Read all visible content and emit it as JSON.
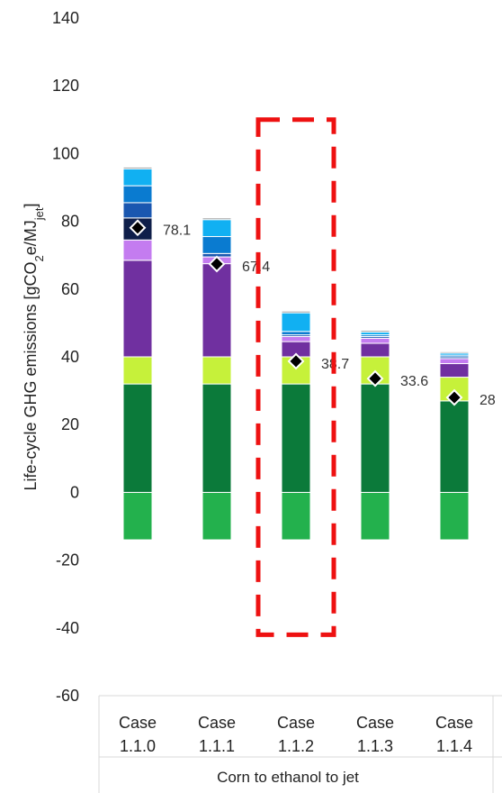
{
  "chart_data": {
    "type": "bar",
    "stacked": true,
    "title": "",
    "xlabel": "",
    "group_label": "Corn to ethanol to jet",
    "ylabel": "Life-cycle GHG emissions [gCO2e/MJjet]",
    "ylabel_parts": {
      "a": "Life-cycle GHG emissions [gCO",
      "b": "2",
      "c": "e/MJ",
      "d": "jet",
      "e": "]"
    },
    "ylim": [
      -60,
      140
    ],
    "yticks": [
      -60,
      -40,
      -20,
      0,
      20,
      40,
      60,
      80,
      100,
      120,
      140
    ],
    "grid": false,
    "legend": "none",
    "categories": [
      [
        "Case",
        "1.1.0"
      ],
      [
        "Case",
        "1.1.1"
      ],
      [
        "Case",
        "1.1.2"
      ],
      [
        "Case",
        "1.1.3"
      ],
      [
        "Case",
        "1.1.4"
      ]
    ],
    "series": [
      {
        "color": "#23b14d",
        "values": [
          -14,
          -14,
          -14,
          -14,
          -14
        ]
      },
      {
        "color": "#0b7a3a",
        "values": [
          32,
          32,
          32,
          32,
          27
        ]
      },
      {
        "color": "#c6f13a",
        "values": [
          8,
          8,
          8,
          8,
          7
        ]
      },
      {
        "color": "#7030a0",
        "values": [
          28.5,
          27.5,
          4.5,
          4,
          4
        ]
      },
      {
        "color": "#c47cf0",
        "values": [
          6,
          2,
          1.5,
          1.5,
          1.5
        ]
      },
      {
        "color": "#0f1f4a",
        "values": [
          6.5,
          0,
          0,
          0,
          0
        ]
      },
      {
        "color": "#1a57b0",
        "values": [
          4.5,
          1,
          0.5,
          0.5,
          0.5
        ]
      },
      {
        "color": "#0a7bd0",
        "values": [
          5,
          5,
          1,
          0.5,
          0.5
        ]
      },
      {
        "color": "#11b0f2",
        "values": [
          5,
          5,
          5.5,
          0.8,
          0.6
        ]
      },
      {
        "color": "#9a9a9a",
        "values": [
          0.5,
          0.5,
          0.5,
          0.5,
          0.4
        ]
      }
    ],
    "net_values": [
      78.1,
      67.4,
      38.7,
      33.6,
      28
    ],
    "net_labels": [
      "78.1",
      "67.4",
      "38.7",
      "33.6",
      "28"
    ],
    "highlight": {
      "category_index": 2,
      "y_range": [
        -42,
        110
      ],
      "color": "#ee1111"
    }
  }
}
